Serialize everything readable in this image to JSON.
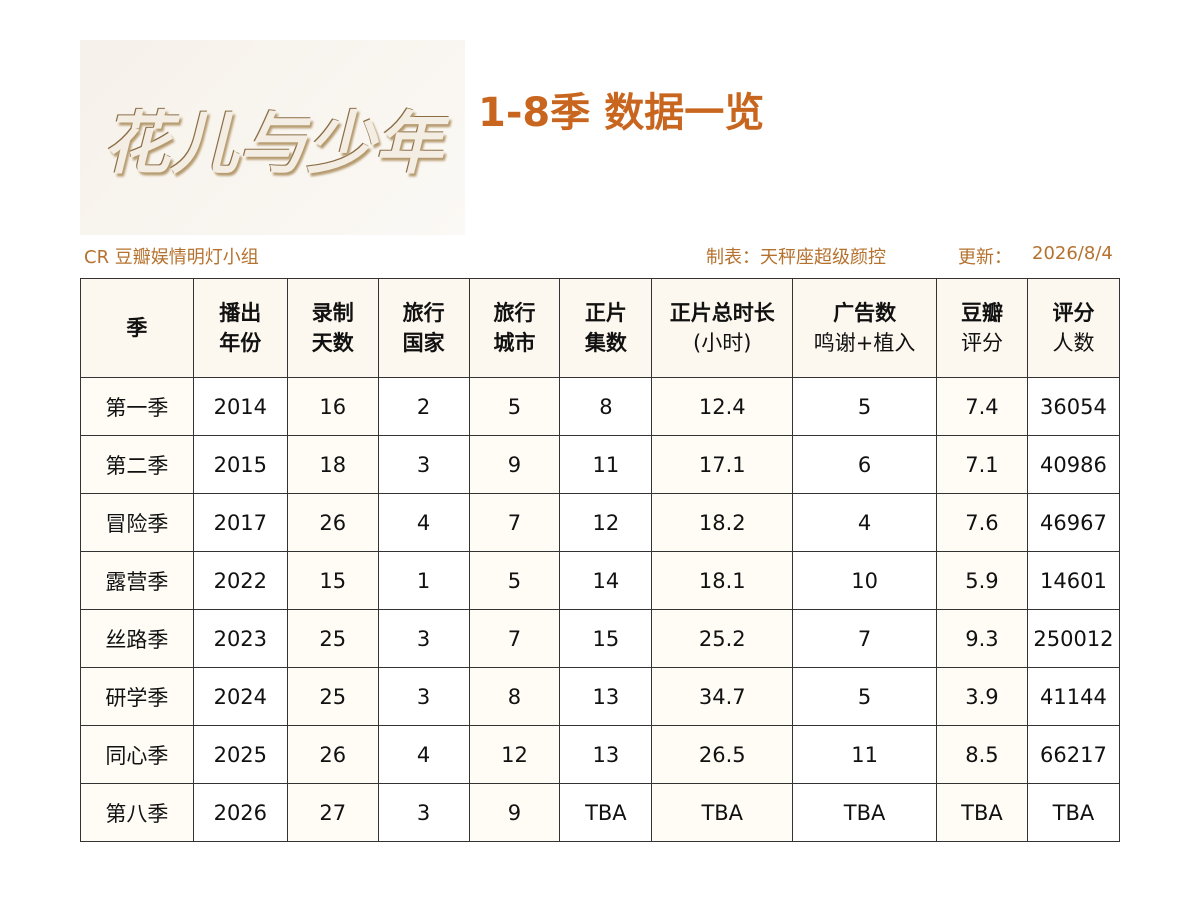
{
  "header": {
    "logo": "花儿与少年",
    "title": "1-8季 数据一览"
  },
  "credits": {
    "left": "CR 豆瓣娱情明灯小组",
    "maker": "制表：天秤座超级颜控",
    "updated_label": "更新：",
    "updated": "2026/8/4"
  },
  "table": {
    "headers": [
      [
        "季"
      ],
      [
        "播出",
        "年份"
      ],
      [
        "录制",
        "天数"
      ],
      [
        "旅行",
        "国家"
      ],
      [
        "旅行",
        "城市"
      ],
      [
        "正片",
        "集数"
      ],
      [
        "正片总时长",
        "(小时)"
      ],
      [
        "广告数",
        "鸣谢+植入"
      ],
      [
        "豆瓣",
        "评分"
      ],
      [
        "评分",
        "人数"
      ]
    ],
    "rows": [
      [
        "第一季",
        2014,
        16,
        2,
        5,
        8,
        12.4,
        5,
        7.4,
        36054
      ],
      [
        "第二季",
        2015,
        18,
        3,
        9,
        11,
        17.1,
        6,
        7.1,
        40986
      ],
      [
        "冒险季",
        2017,
        26,
        4,
        7,
        12,
        18.2,
        4,
        7.6,
        46967
      ],
      [
        "露营季",
        2022,
        15,
        1,
        5,
        14,
        18.1,
        10,
        5.9,
        14601
      ],
      [
        "丝路季",
        2023,
        25,
        3,
        7,
        15,
        25.2,
        7,
        9.3,
        250012
      ],
      [
        "研学季",
        2024,
        25,
        3,
        8,
        13,
        34.7,
        5,
        3.9,
        41144
      ],
      [
        "同心季",
        2025,
        26,
        4,
        12,
        13,
        26.5,
        11,
        8.5,
        66217
      ],
      [
        "第八季",
        2026,
        27,
        3,
        9,
        "TBA",
        "TBA",
        "TBA",
        "TBA",
        "TBA"
      ]
    ]
  }
}
